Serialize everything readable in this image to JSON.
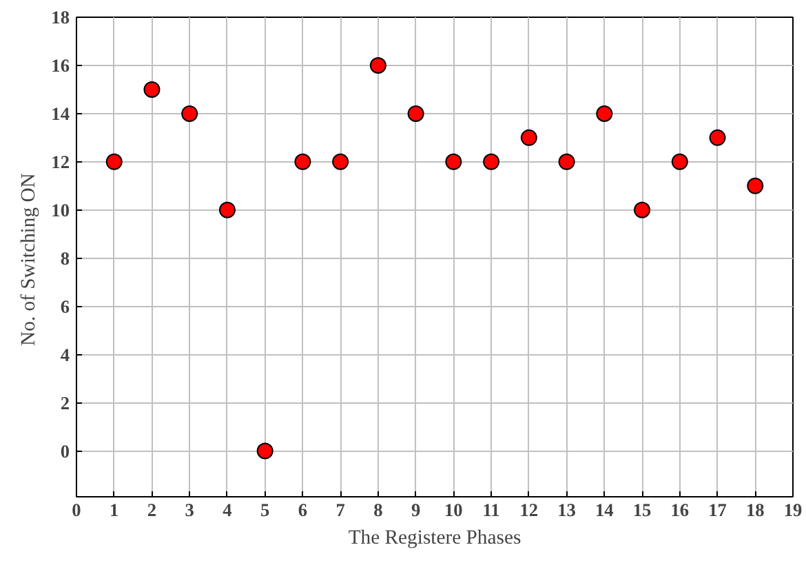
{
  "chart_data": {
    "type": "scatter",
    "xlabel": "The Registere Phases",
    "ylabel": "No. of  Switching ON",
    "x": [
      1,
      2,
      3,
      4,
      5,
      6,
      7,
      8,
      9,
      10,
      11,
      12,
      13,
      14,
      15,
      16,
      17,
      18
    ],
    "series": [
      {
        "color": "#ff0000",
        "values": [
          12,
          15,
          14,
          10,
          0,
          12,
          12,
          16,
          14,
          12,
          12,
          13,
          12,
          14,
          10,
          12,
          13,
          11
        ]
      }
    ],
    "xlim": [
      0,
      19
    ],
    "xticks": [
      0,
      1,
      2,
      3,
      4,
      5,
      6,
      7,
      8,
      9,
      10,
      11,
      12,
      13,
      14,
      15,
      16,
      17,
      18,
      19
    ],
    "ylim": [
      -1.9,
      18
    ],
    "yticks": [
      0,
      2,
      4,
      6,
      8,
      10,
      12,
      14,
      16,
      18
    ],
    "grid": true,
    "marker": "circle"
  }
}
